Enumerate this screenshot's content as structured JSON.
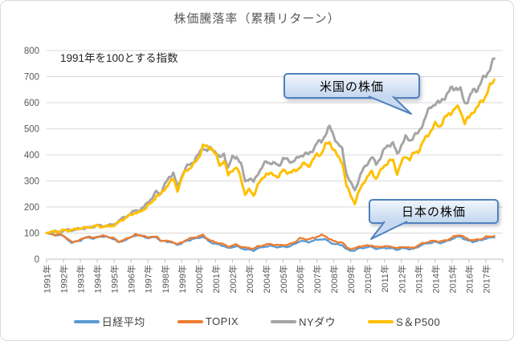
{
  "chart_data": {
    "type": "line",
    "title": "株価騰落率（累積リターン）",
    "annotation": "1991年を100とする指数",
    "xlabel": "",
    "ylabel": "",
    "x_start": 1991,
    "x_step": 0.25,
    "x_axis": {
      "range": [
        1991,
        2018
      ],
      "labels": [
        "1991年",
        "1992年",
        "1993年",
        "1994年",
        "1995年",
        "1996年",
        "1997年",
        "1998年",
        "1999年",
        "2000年",
        "2001年",
        "2002年",
        "2003年",
        "2004年",
        "2005年",
        "2006年",
        "2007年",
        "2008年",
        "2009年",
        "2010年",
        "2011年",
        "2012年",
        "2013年",
        "2014年",
        "2015年",
        "2016年",
        "2017年"
      ]
    },
    "y_axis": {
      "range": [
        0,
        800
      ],
      "ticks": [
        0,
        100,
        200,
        300,
        400,
        500,
        600,
        700,
        800
      ]
    },
    "grid": true,
    "legend_position": "bottom",
    "callouts": [
      {
        "text": "米国の株価"
      },
      {
        "text": "日本の株価"
      }
    ],
    "series": [
      {
        "name": "日経平均",
        "color": "#5B9BD5",
        "values": [
          100,
          96,
          92,
          95,
          88,
          76,
          62,
          68,
          72,
          80,
          86,
          78,
          84,
          88,
          86,
          82,
          78,
          64,
          70,
          76,
          84,
          92,
          90,
          88,
          80,
          84,
          86,
          68,
          70,
          66,
          62,
          56,
          60,
          70,
          74,
          78,
          82,
          86,
          74,
          64,
          58,
          56,
          50,
          42,
          46,
          50,
          42,
          38,
          36,
          33,
          42,
          45,
          49,
          51,
          48,
          46,
          48,
          47,
          52,
          60,
          70,
          68,
          66,
          70,
          74,
          77,
          75,
          66,
          58,
          56,
          54,
          38,
          32,
          34,
          42,
          43,
          46,
          47,
          40,
          41,
          44,
          42,
          41,
          36,
          41,
          42,
          38,
          40,
          48,
          56,
          60,
          63,
          66,
          62,
          65,
          70,
          78,
          84,
          87,
          76,
          70,
          67,
          70,
          73,
          80,
          82,
          84
        ]
      },
      {
        "name": "TOPIX",
        "color": "#ED7D31",
        "values": [
          100,
          97,
          93,
          96,
          90,
          78,
          64,
          70,
          74,
          82,
          87,
          80,
          86,
          90,
          88,
          84,
          80,
          67,
          72,
          78,
          86,
          94,
          92,
          90,
          82,
          86,
          87,
          70,
          72,
          68,
          65,
          58,
          63,
          74,
          79,
          83,
          88,
          92,
          80,
          70,
          64,
          62,
          56,
          48,
          52,
          56,
          48,
          44,
          43,
          40,
          49,
          52,
          56,
          58,
          55,
          53,
          55,
          54,
          60,
          68,
          80,
          78,
          76,
          80,
          86,
          92,
          88,
          78,
          68,
          66,
          64,
          46,
          39,
          41,
          49,
          50,
          52,
          53,
          46,
          47,
          50,
          48,
          47,
          42,
          46,
          47,
          43,
          45,
          53,
          61,
          65,
          68,
          71,
          67,
          70,
          75,
          83,
          90,
          93,
          82,
          76,
          72,
          75,
          78,
          85,
          87,
          89
        ]
      },
      {
        "name": "NYダウ",
        "color": "#A5A5A5",
        "values": [
          100,
          103,
          106,
          104,
          110,
          112,
          111,
          114,
          117,
          119,
          121,
          124,
          131,
          126,
          128,
          130,
          133,
          145,
          157,
          166,
          175,
          188,
          187,
          198,
          222,
          232,
          260,
          252,
          285,
          315,
          330,
          275,
          320,
          350,
          365,
          380,
          400,
          430,
          415,
          425,
          415,
          385,
          405,
          350,
          390,
          395,
          365,
          300,
          310,
          295,
          330,
          350,
          375,
          370,
          365,
          360,
          385,
          380,
          375,
          380,
          395,
          405,
          400,
          420,
          445,
          450,
          480,
          505,
          475,
          440,
          420,
          330,
          290,
          265,
          310,
          345,
          370,
          390,
          365,
          390,
          420,
          440,
          445,
          400,
          440,
          465,
          455,
          475,
          480,
          520,
          555,
          585,
          600,
          595,
          620,
          635,
          655,
          660,
          645,
          600,
          615,
          645,
          655,
          680,
          705,
          735,
          765
        ]
      },
      {
        "name": "S＆P500",
        "color": "#FFC000",
        "values": [
          100,
          104,
          107,
          105,
          112,
          110,
          112,
          115,
          119,
          120,
          122,
          125,
          129,
          124,
          126,
          127,
          130,
          141,
          152,
          161,
          170,
          179,
          178,
          190,
          208,
          215,
          245,
          248,
          268,
          295,
          305,
          265,
          310,
          340,
          352,
          365,
          390,
          435,
          428,
          430,
          400,
          360,
          380,
          320,
          345,
          350,
          310,
          250,
          265,
          245,
          285,
          305,
          330,
          325,
          322,
          318,
          340,
          335,
          332,
          340,
          355,
          365,
          358,
          378,
          400,
          405,
          435,
          450,
          420,
          390,
          375,
          280,
          245,
          215,
          260,
          295,
          315,
          335,
          310,
          335,
          360,
          375,
          378,
          330,
          370,
          395,
          385,
          405,
          415,
          445,
          470,
          495,
          515,
          510,
          535,
          550,
          570,
          580,
          570,
          525,
          540,
          570,
          580,
          605,
          630,
          660,
          690
        ]
      }
    ],
    "colors": {
      "grid": "#D9D9D9",
      "axis_line": "#BFBFBF",
      "axis_text": "#595959",
      "callout_border": "#4F81BD",
      "callout_fill": "#C6D9F0"
    }
  }
}
